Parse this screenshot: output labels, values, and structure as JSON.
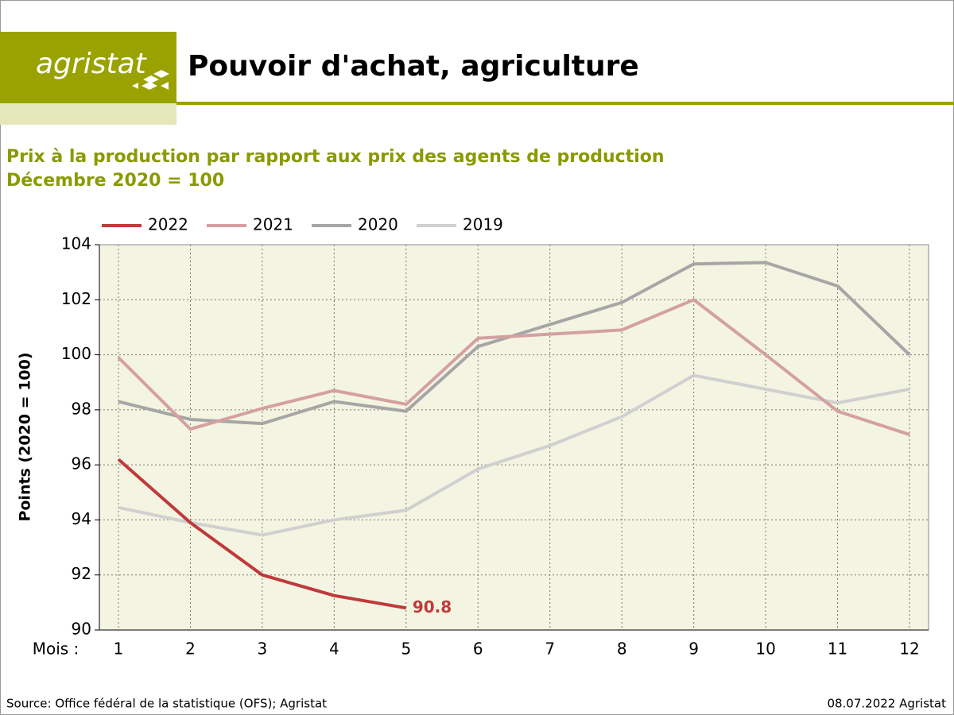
{
  "chart_data": {
    "type": "line",
    "brand": "agristat",
    "title": "Pouvoir d'achat, agriculture",
    "subtitle": [
      "Prix à la production par rapport aux prix des agents de production",
      "Décembre 2020 = 100"
    ],
    "ylabel": "Points (2020 = 100)",
    "xlabel": "Mois :",
    "source": "Source: Office fédéral de la statistique (OFS); Agristat",
    "note": "08.07.2022 Agristat",
    "categories": [
      "1",
      "2",
      "3",
      "4",
      "5",
      "6",
      "7",
      "8",
      "9",
      "10",
      "11",
      "12"
    ],
    "series": [
      {
        "name": "2022",
        "color": "#c0393b",
        "label_last": true,
        "values": [
          96.2,
          93.9,
          92.0,
          91.25,
          90.8,
          null,
          null,
          null,
          null,
          null,
          null,
          null
        ]
      },
      {
        "name": "2021",
        "color": "#d4a0a0",
        "values": [
          99.9,
          97.3,
          98.05,
          98.7,
          98.2,
          100.6,
          100.75,
          100.9,
          102.0,
          100.0,
          97.95,
          97.1
        ]
      },
      {
        "name": "2020",
        "color": "#a6a6a6",
        "values": [
          98.3,
          97.65,
          97.5,
          98.3,
          97.95,
          100.3,
          101.1,
          101.9,
          103.3,
          103.35,
          102.5,
          100.0
        ]
      },
      {
        "name": "2019",
        "color": "#d0d0d0",
        "values": [
          94.45,
          93.9,
          93.45,
          94.0,
          94.35,
          95.85,
          96.7,
          97.75,
          99.25,
          98.75,
          98.25,
          98.75
        ]
      }
    ],
    "ylim": [
      90,
      104
    ],
    "yticks": [
      90,
      92,
      94,
      96,
      98,
      100,
      102,
      104
    ],
    "grid": true
  }
}
